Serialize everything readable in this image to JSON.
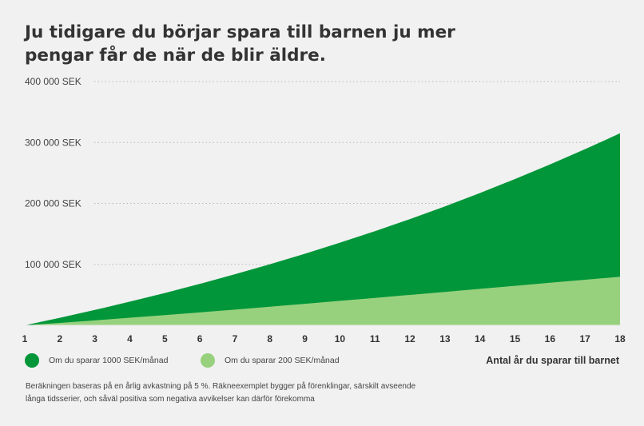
{
  "title_lines": [
    "Ju tidigare du börjar spara till barnen ju mer",
    "pengar får de när de blir äldre."
  ],
  "legend": [
    {
      "label": "Om du sparar 1000 SEK/månad",
      "color": "#009639"
    },
    {
      "label": "Om du sparar 200 SEK/månad",
      "color": "#97d17e"
    }
  ],
  "xlabel": "Antal år du sparar till barnet",
  "footnote_lines": [
    "Beräkningen baseras på en årlig avkastning på 5 %. Räkneexemplet bygger på förenklingar, särskilt avseende",
    "långa tidsserier, och såväl positiva som negativa avvikelser kan därför förekomma"
  ],
  "chart_data": {
    "type": "area",
    "x": [
      1,
      2,
      3,
      4,
      5,
      6,
      7,
      8,
      9,
      10,
      11,
      12,
      13,
      14,
      15,
      16,
      17,
      18
    ],
    "series": [
      {
        "name": "Om du sparar 1000 SEK/månad",
        "color": "#009639",
        "values": [
          0,
          12300,
          25200,
          38800,
          53000,
          68000,
          83700,
          100200,
          117400,
          135500,
          154400,
          174300,
          195100,
          217000,
          240000,
          264000,
          289000,
          315000
        ]
      },
      {
        "name": "Om du sparar 200 SEK/månad",
        "color": "#97d17e",
        "values": [
          0,
          4000,
          8100,
          12400,
          16700,
          21200,
          25800,
          30500,
          35300,
          40100,
          45000,
          49900,
          54800,
          59800,
          64800,
          69800,
          74700,
          79600
        ]
      }
    ],
    "y_ticks": [
      {
        "value": 100000,
        "label": "100 000 SEK"
      },
      {
        "value": 200000,
        "label": "200 000 SEK"
      },
      {
        "value": 300000,
        "label": "300 000 SEK"
      },
      {
        "value": 400000,
        "label": "400 000 SEK"
      }
    ],
    "ylim": [
      0,
      400000
    ],
    "xlim": [
      1,
      18
    ],
    "grid": true,
    "grid_style": "dotted"
  }
}
